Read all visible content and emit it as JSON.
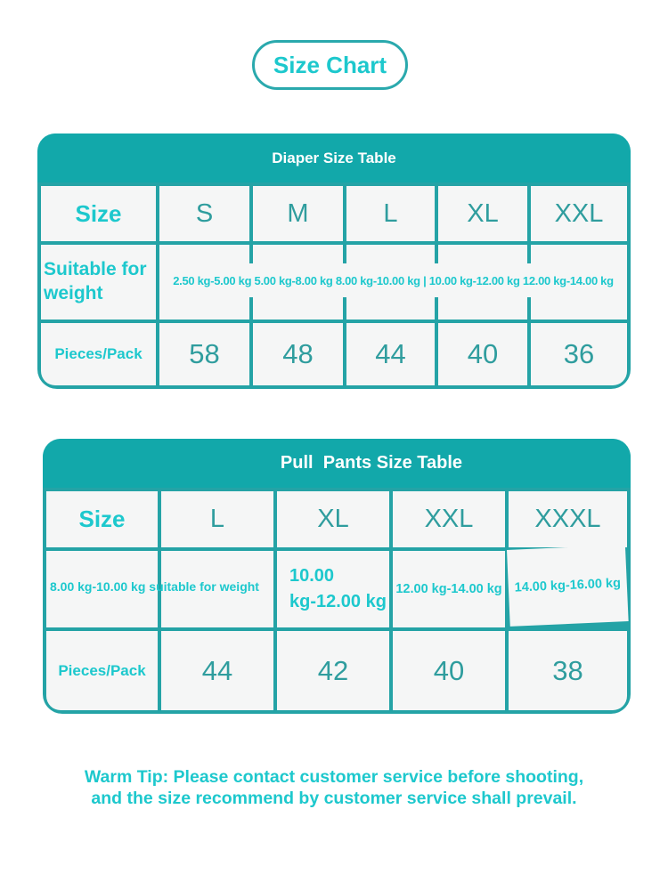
{
  "colors": {
    "teal_header": "#12a8aa",
    "teal_border": "#24a3a6",
    "cyan_bright": "#1dc8cd",
    "teal_text": "#2f9d9e",
    "cell_background": "#f5f6f6"
  },
  "title_pill": {
    "label": "Size Chart"
  },
  "diaper_table": {
    "title": "Diaper Size Table",
    "size_label": "Size",
    "sizes": [
      "S",
      "M",
      "L",
      "XL",
      "XXL"
    ],
    "weight_label": "Suitable for weight",
    "weight_text": "2.50 kg-5.00 kg 5.00 kg-8.00 kg 8.00 kg-10.00 kg | 10.00 kg-12.00 kg 12.00 kg-14.00 kg",
    "pieces_label": "Pieces/Pack",
    "pieces": [
      "58",
      "48",
      "44",
      "40",
      "36"
    ]
  },
  "pull_pants_table": {
    "title": "Pull  Pants Size Table",
    "size_label": "Size",
    "sizes": [
      "L",
      "XL",
      "XXL",
      "XXXL"
    ],
    "weight_span_text": "8.00 kg-10.00 kg suitable for weight",
    "weights": {
      "xl": "10.00\nkg-12.00 kg",
      "xxl": "12.00 kg-14.00 kg",
      "xxxl": "14.00 kg-16.00 kg"
    },
    "pieces_label": "Pieces/Pack",
    "pieces": [
      "44",
      "42",
      "40",
      "38"
    ]
  },
  "warm_tip": {
    "line1": "Warm Tip: Please contact customer service before shooting,",
    "line2": "and the size recommend by customer service shall prevail."
  }
}
